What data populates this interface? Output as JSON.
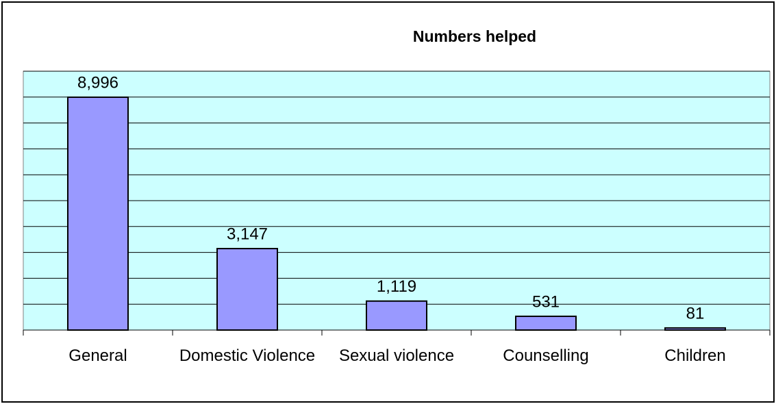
{
  "chart_data": {
    "type": "bar",
    "title": "Numbers helped",
    "categories": [
      "General",
      "Domestic Violence",
      "Sexual violence",
      "Counselling",
      "Children"
    ],
    "values": [
      8996,
      3147,
      1119,
      531,
      81
    ],
    "value_labels": [
      "8,996",
      "3,147",
      "1,119",
      "531",
      "81"
    ],
    "color": "#9999ff",
    "ylim": [
      0,
      10000
    ],
    "yticks": [
      0,
      1000,
      2000,
      3000,
      4000,
      5000,
      6000,
      7000,
      8000,
      9000,
      10000
    ],
    "grid": true
  }
}
